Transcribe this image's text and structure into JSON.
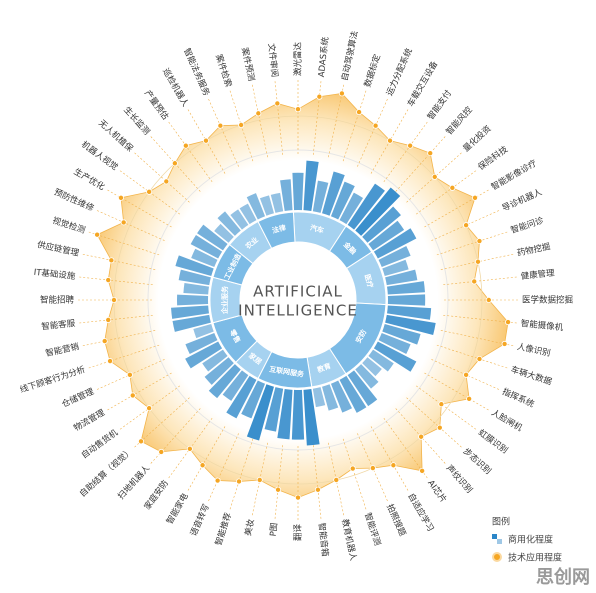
{
  "chart_data": {
    "type": "radial_bar",
    "center_text": [
      "ARTIFICIAL",
      "INTELLIGENCE"
    ],
    "categories": [
      "激光雷达",
      "ADAS系统",
      "自动驾驶算法",
      "数据标定",
      "运力分配系统",
      "车载交互设备",
      "智能支付",
      "智能风控",
      "量化投资",
      "保险科技",
      "智能影像诊疗",
      "导诊机器人",
      "智能问诊",
      "药物挖掘",
      "健康管理",
      "医学数据挖掘",
      "智能摄像机",
      "人像识别",
      "车辆大数据",
      "指挥系统",
      "人脸闸机",
      "虹膜识别",
      "步态识别",
      "声纹识别",
      "AI芯片",
      "自适应学习",
      "拍照搜题",
      "智能评测",
      "教育机器人",
      "智能音箱",
      "翻译",
      "P图",
      "美妆",
      "智能推荐",
      "语音转写",
      "智能家电",
      "家庭安防",
      "扫地机器人",
      "自助结算（视觉）",
      "自动售货机",
      "物流管理",
      "仓储管理",
      "线下顾客行为分析",
      "智能营销",
      "智能客服",
      "智能招聘",
      "IT基础设施",
      "供应链管理",
      "视觉检测",
      "预防性维修",
      "生产优化",
      "机器人视觉",
      "无人机植保",
      "生长监测",
      "产量预估",
      "巡检机器人",
      "智能法务服务",
      "案件检索",
      "案件预测",
      "文件审阅"
    ],
    "sectors": [
      {
        "name": "汽车",
        "count": 6
      },
      {
        "name": "金融",
        "count": 4
      },
      {
        "name": "医疗",
        "count": 6
      },
      {
        "name": "安防",
        "count": 9
      },
      {
        "name": "教育",
        "count": 4
      },
      {
        "name": "互联网服务",
        "count": 6
      },
      {
        "name": "家居",
        "count": 3
      },
      {
        "name": "零售",
        "count": 5
      },
      {
        "name": "企业服务",
        "count": 5
      },
      {
        "name": "工业制造",
        "count": 4
      },
      {
        "name": "农业",
        "count": 4
      },
      {
        "name": "法律",
        "count": 4
      }
    ],
    "series": [
      {
        "name": "商用化程度",
        "color": "#2b86c8",
        "values": [
          6,
          8,
          5,
          7,
          6,
          5,
          8,
          9,
          7,
          6,
          7,
          5,
          4,
          5,
          6,
          6,
          7,
          8,
          6,
          5,
          7,
          4,
          3,
          4,
          6,
          6,
          5,
          4,
          3,
          9,
          8,
          8,
          7,
          9,
          6,
          7,
          5,
          6,
          5,
          4,
          6,
          5,
          3,
          6,
          6,
          5,
          4,
          5,
          6,
          4,
          5,
          5,
          3,
          4,
          3,
          3,
          4,
          3,
          3,
          5
        ]
      },
      {
        "name": "技术应用程度",
        "color": "#f5a623",
        "values": [
          6,
          8,
          9,
          7,
          6,
          5,
          6,
          7,
          5,
          6,
          8,
          5,
          6,
          5,
          4,
          6,
          9,
          9,
          6,
          5,
          7,
          4,
          6,
          5,
          9,
          6,
          5,
          4,
          5,
          6,
          7,
          6,
          5,
          6,
          7,
          6,
          5,
          8,
          9,
          5,
          6,
          5,
          7,
          7,
          6,
          5,
          6,
          6,
          9,
          6,
          8,
          5,
          4,
          5,
          6,
          5,
          6,
          5,
          6,
          7
        ]
      }
    ],
    "ylim": [
      0,
      10
    ],
    "legend_title": "图例",
    "watermark": "思创网"
  }
}
